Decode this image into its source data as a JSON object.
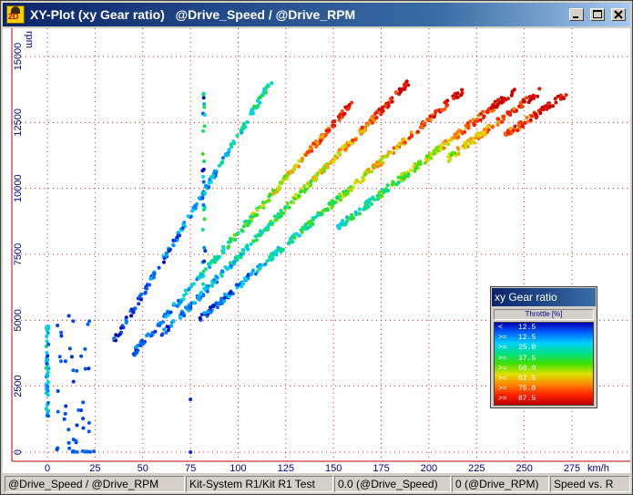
{
  "window": {
    "title": "XY-Plot (xy Gear ratio)   @Drive_Speed / @Drive_RPM",
    "icon": "app-2d-plot-icon",
    "controls": [
      "minimize-icon",
      "maximize-icon",
      "close-icon"
    ]
  },
  "chart_data": {
    "type": "scatter",
    "title": "",
    "xlabel": "km/h",
    "ylabel": "rpm",
    "xlim": [
      -10,
      285
    ],
    "ylim": [
      -300,
      16300
    ],
    "x_ticks": [
      0,
      25,
      50,
      75,
      100,
      125,
      150,
      175,
      200,
      225,
      250,
      275
    ],
    "y_ticks": [
      0,
      2500,
      5000,
      7500,
      10000,
      12500,
      15000
    ],
    "grid": true,
    "color_scale": {
      "name": "Throttle [%]",
      "thresholds": [
        12.5,
        25.0,
        37.5,
        50.0,
        62.5,
        75.0,
        87.5
      ]
    },
    "gears": [
      {
        "ratio_rpm_per_kmh": 120,
        "x_range": [
          35,
          118
        ],
        "throttle_range": [
          5,
          40
        ]
      },
      {
        "ratio_rpm_per_kmh": 83,
        "x_range": [
          45,
          160
        ],
        "throttle_range": [
          10,
          95
        ]
      },
      {
        "ratio_rpm_per_kmh": 74,
        "x_range": [
          60,
          190
        ],
        "throttle_range": [
          10,
          100
        ]
      },
      {
        "ratio_rpm_per_kmh": 63,
        "x_range": [
          80,
          218
        ],
        "throttle_range": [
          10,
          100
        ]
      },
      {
        "ratio_rpm_per_kmh": 56,
        "x_range": [
          150,
          245
        ],
        "throttle_range": [
          30,
          100
        ]
      },
      {
        "ratio_rpm_per_kmh": 53,
        "x_range": [
          210,
          258
        ],
        "throttle_range": [
          60,
          100
        ]
      },
      {
        "ratio_rpm_per_kmh": 50,
        "x_range": [
          240,
          272
        ],
        "throttle_range": [
          80,
          100
        ]
      }
    ],
    "idle_points": {
      "x": 0,
      "y_range": [
        1200,
        4800
      ]
    },
    "shift_points": [
      {
        "x": 82,
        "y_range": [
          6000,
          13600
        ]
      }
    ]
  },
  "legend": {
    "title": "xy Gear ratio",
    "subtitle": "Throttle  [%]",
    "rows": [
      {
        "op": "<",
        "val": "12.5"
      },
      {
        "op": ">=",
        "val": "12.5"
      },
      {
        "op": ">=",
        "val": "25.0"
      },
      {
        "op": ">=",
        "val": "37.5"
      },
      {
        "op": ">=",
        "val": "50.0"
      },
      {
        "op": ">=",
        "val": "62.5"
      },
      {
        "op": ">=",
        "val": "75.0"
      },
      {
        "op": ">=",
        "val": "87.5"
      }
    ]
  },
  "status": [
    "@Drive_Speed / @Drive_RPM",
    "Kit-System R1/Kit R1 Test",
    "0.0 (@Drive_Speed)",
    "0 (@Drive_RPM)",
    "Speed vs. R"
  ]
}
